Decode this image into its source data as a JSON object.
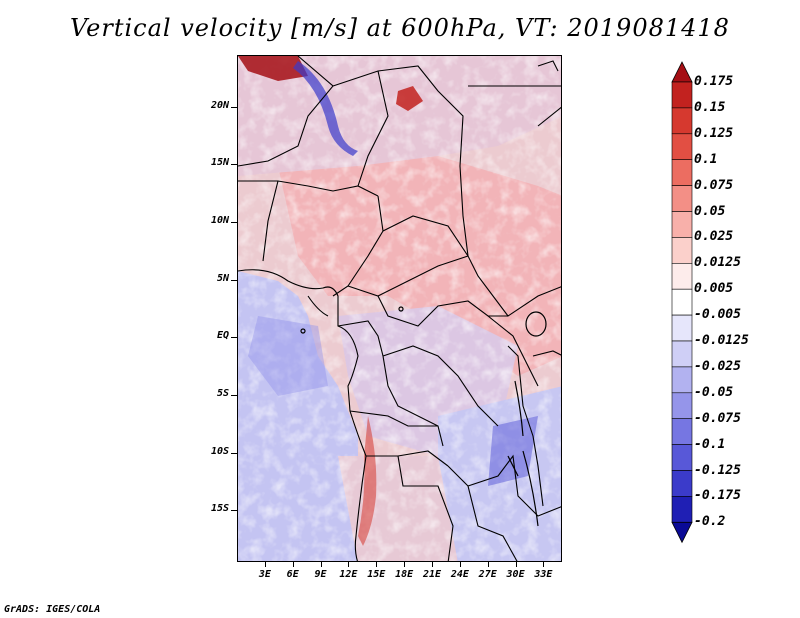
{
  "title": "Vertical velocity [m/s] at 600hPa, VT: 2019081418",
  "footer": "GrADS: IGES/COLA",
  "lat_labels": [
    "20N",
    "15N",
    "10N",
    "5N",
    "EQ",
    "5S",
    "10S",
    "15S"
  ],
  "lon_labels": [
    "3E",
    "6E",
    "9E",
    "12E",
    "15E",
    "18E",
    "21E",
    "24E",
    "27E",
    "30E",
    "33E"
  ],
  "colorbar": {
    "labels": [
      "0.175",
      "0.15",
      "0.125",
      "0.1",
      "0.075",
      "0.05",
      "0.025",
      "0.0125",
      "0.005",
      "-0.005",
      "-0.0125",
      "-0.025",
      "-0.05",
      "-0.075",
      "-0.1",
      "-0.125",
      "-0.175",
      "-0.2"
    ],
    "colors": [
      "#a50f15",
      "#c2221f",
      "#d6392f",
      "#e24f43",
      "#ec6d61",
      "#f38f86",
      "#f8b0aa",
      "#fbd0cb",
      "#fdeceb",
      "#ffffff",
      "#e6e6fb",
      "#cfcff6",
      "#b2b2f0",
      "#9595ea",
      "#7676e2",
      "#5858d8",
      "#3b3bca",
      "#1f1fb4",
      "#0a0a96"
    ]
  },
  "chart_data": {
    "type": "heatmap",
    "title": "Vertical velocity [m/s] at 600hPa, VT: 2019081418",
    "lon_range": [
      0,
      35
    ],
    "lat_range": [
      -19.5,
      24.5
    ],
    "lat_ticks": [
      20,
      15,
      10,
      5,
      0,
      -5,
      -10,
      -15
    ],
    "lon_ticks": [
      3,
      6,
      9,
      12,
      15,
      18,
      21,
      24,
      27,
      30,
      33
    ],
    "levels": [
      -0.2,
      -0.175,
      -0.125,
      -0.1,
      -0.075,
      -0.05,
      -0.025,
      -0.0125,
      -0.005,
      0.005,
      0.0125,
      0.025,
      0.05,
      0.075,
      0.1,
      0.125,
      0.15,
      0.175
    ]
  }
}
